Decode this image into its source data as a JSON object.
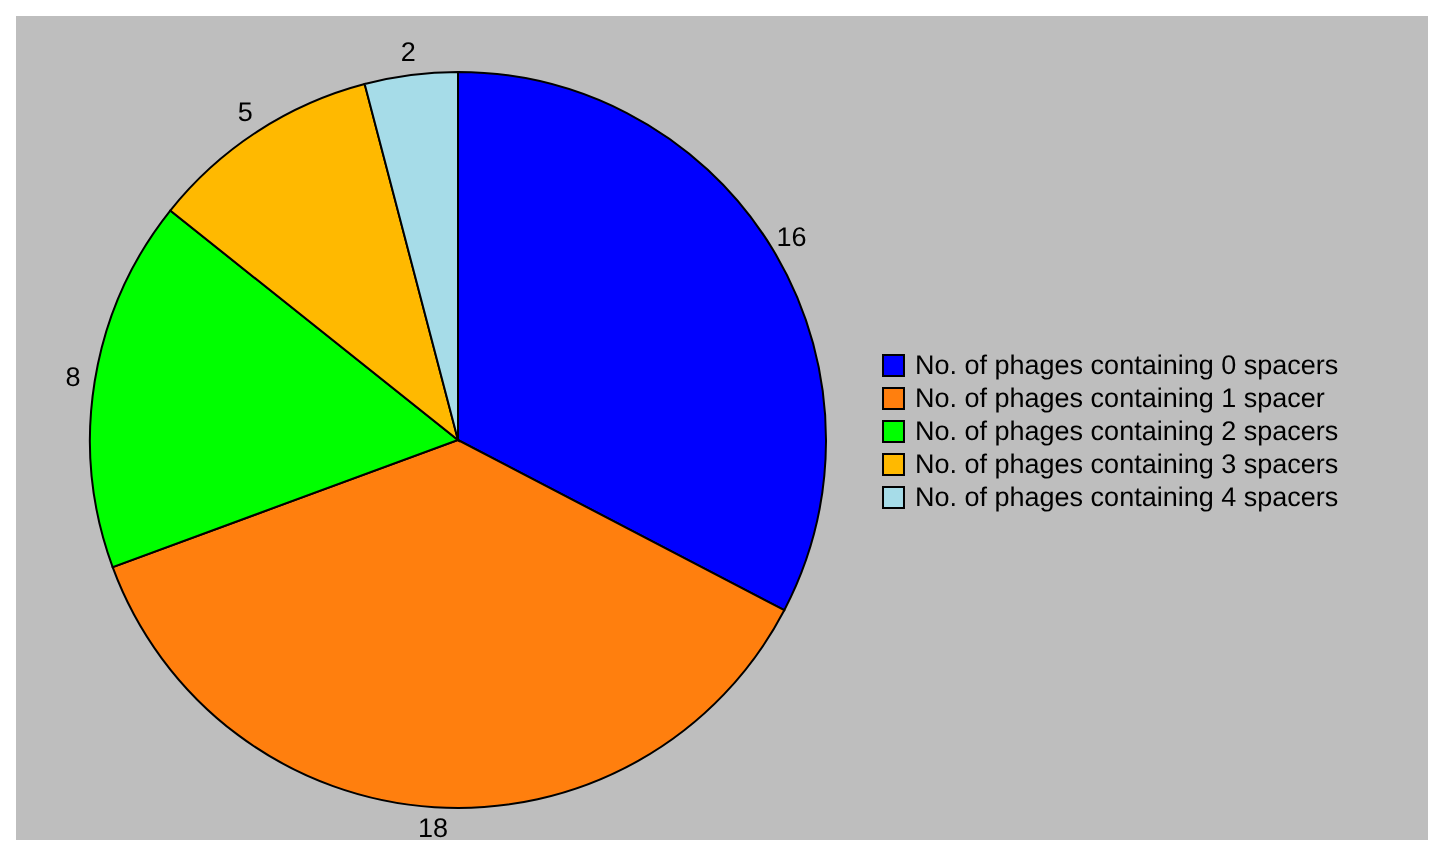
{
  "chart_data": {
    "type": "pie",
    "categories": [
      "No. of phages containing 0 spacers",
      "No. of phages containing 1 spacer",
      "No. of phages containing 2 spacers",
      "No. of phages containing 3 spacers",
      "No. of phages containing 4 spacers"
    ],
    "values": [
      16,
      18,
      8,
      5,
      2
    ],
    "colors": [
      "#0000ff",
      "#ff7f0e",
      "#00ff00",
      "#ffb900",
      "#a6dce8"
    ],
    "data_labels": true,
    "legend": "right"
  }
}
